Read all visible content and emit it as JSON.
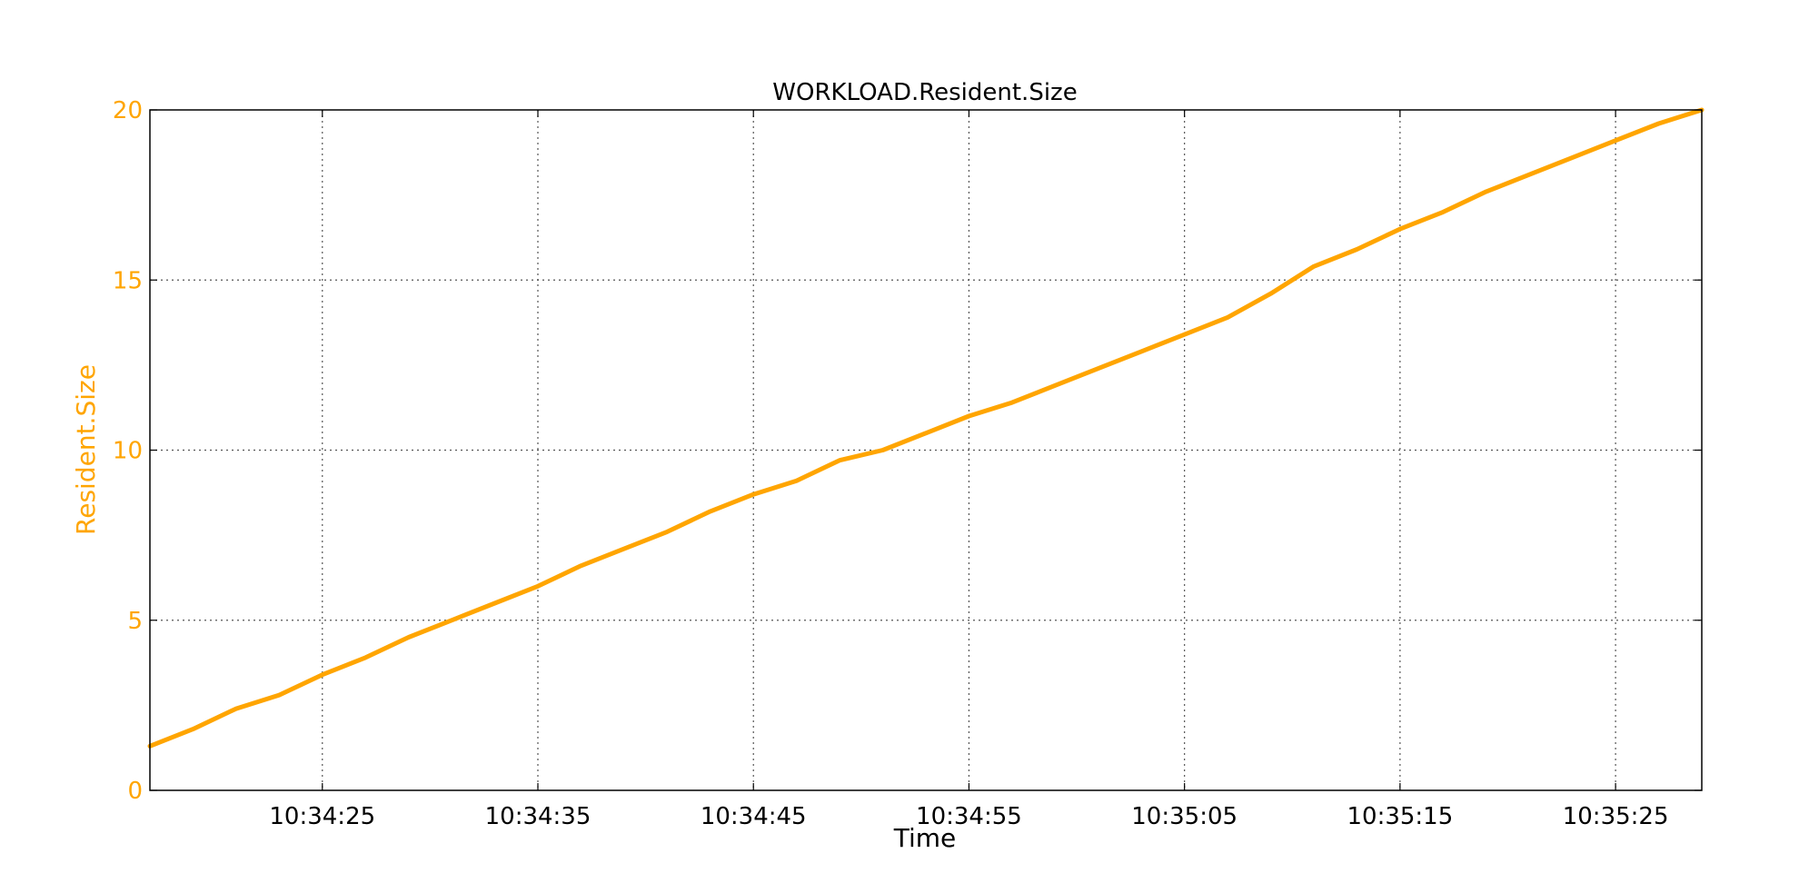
{
  "chart_data": {
    "type": "line",
    "title": "WORKLOAD.Resident.Size",
    "xlabel": "Time",
    "ylabel": "Resident.Size",
    "x_tick_labels": [
      "10:34:25",
      "10:34:35",
      "10:34:45",
      "10:34:55",
      "10:35:05",
      "10:35:15",
      "10:35:25"
    ],
    "x_range": [
      "10:34:17",
      "10:35:29"
    ],
    "ylim": [
      0,
      20
    ],
    "y_ticks": [
      0,
      5,
      10,
      15,
      20
    ],
    "grid": true,
    "colors": {
      "series": "#FFA500",
      "ylabel": "#FFA500",
      "axis": "#000000",
      "grid": "#555555"
    },
    "series": [
      {
        "x": [
          "10:34:17",
          "10:34:19",
          "10:34:21",
          "10:34:23",
          "10:34:25",
          "10:34:27",
          "10:34:29",
          "10:34:31",
          "10:34:33",
          "10:34:35",
          "10:34:37",
          "10:34:39",
          "10:34:41",
          "10:34:43",
          "10:34:45",
          "10:34:47",
          "10:34:49",
          "10:34:51",
          "10:34:53",
          "10:34:55",
          "10:34:57",
          "10:34:59",
          "10:35:01",
          "10:35:03",
          "10:35:05",
          "10:35:07",
          "10:35:09",
          "10:35:11",
          "10:35:13",
          "10:35:15",
          "10:35:17",
          "10:35:19",
          "10:35:21",
          "10:35:23",
          "10:35:25",
          "10:35:27",
          "10:35:29"
        ],
        "y": [
          1.3,
          1.8,
          2.4,
          2.8,
          3.4,
          3.9,
          4.5,
          5.0,
          5.5,
          6.0,
          6.6,
          7.1,
          7.6,
          8.2,
          8.7,
          9.1,
          9.7,
          10.0,
          10.5,
          11.0,
          11.4,
          11.9,
          12.4,
          12.9,
          13.4,
          13.9,
          14.6,
          15.4,
          15.9,
          16.5,
          17.0,
          17.6,
          18.1,
          18.6,
          19.1,
          19.6,
          20.0
        ]
      }
    ]
  }
}
